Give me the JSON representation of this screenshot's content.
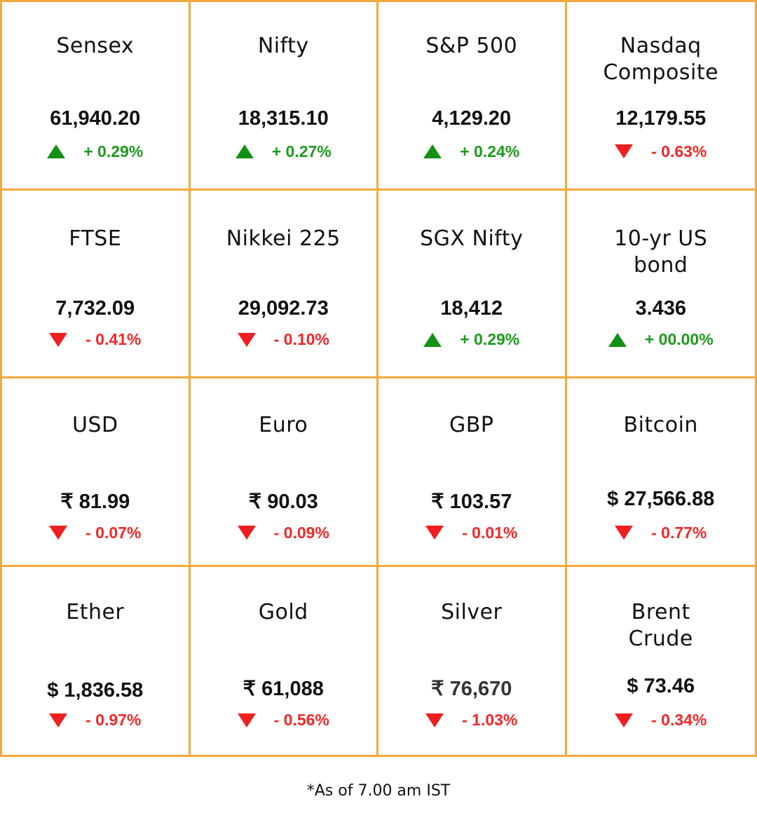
{
  "colors": {
    "border": "#f3a93b",
    "up": "#1e9a1e",
    "down": "#f02828"
  },
  "tiles": [
    {
      "name": "Sensex",
      "value": "61,940.20",
      "change": "+ 0.29%",
      "direction": "up",
      "direction_icon": "triangle-up-icon"
    },
    {
      "name": "Nifty",
      "value": "18,315.10",
      "change": "+ 0.27%",
      "direction": "up",
      "direction_icon": "triangle-up-icon"
    },
    {
      "name": "S&P 500",
      "value": "4,129.20",
      "change": "+ 0.24%",
      "direction": "up",
      "direction_icon": "triangle-up-icon"
    },
    {
      "name": "Nasdaq Composite",
      "value": "12,179.55",
      "change": "- 0.63%",
      "direction": "down",
      "direction_icon": "triangle-down-icon"
    },
    {
      "name": "FTSE",
      "value": "7,732.09",
      "change": "- 0.41%",
      "direction": "down",
      "direction_icon": "triangle-down-icon"
    },
    {
      "name": "Nikkei 225",
      "value": "29,092.73",
      "change": "- 0.10%",
      "direction": "down",
      "direction_icon": "triangle-down-icon"
    },
    {
      "name": "SGX Nifty",
      "value": "18,412",
      "change": "+ 0.29%",
      "direction": "up",
      "direction_icon": "triangle-up-icon"
    },
    {
      "name": "10-yr US bond",
      "value": "3.436",
      "change": "+ 00.00%",
      "direction": "up",
      "direction_icon": "triangle-up-icon"
    },
    {
      "name": "USD",
      "value": "₹ 81.99",
      "change": "- 0.07%",
      "direction": "down",
      "direction_icon": "triangle-down-icon"
    },
    {
      "name": "Euro",
      "value": "₹ 90.03",
      "change": "- 0.09%",
      "direction": "down",
      "direction_icon": "triangle-down-icon"
    },
    {
      "name": "GBP",
      "value": "₹ 103.57",
      "change": "- 0.01%",
      "direction": "down",
      "direction_icon": "triangle-down-icon"
    },
    {
      "name": "Bitcoin",
      "value": "$ 27,566.88",
      "change": "- 0.77%",
      "direction": "down",
      "direction_icon": "triangle-down-icon"
    },
    {
      "name": "Ether",
      "value": "$ 1,836.58",
      "change": "- 0.97%",
      "direction": "down",
      "direction_icon": "triangle-down-icon"
    },
    {
      "name": "Gold",
      "value": "₹ 61,088",
      "change": "- 0.56%",
      "direction": "down",
      "direction_icon": "triangle-down-icon"
    },
    {
      "name": "Silver",
      "value": "₹ 76,670",
      "change": "- 1.03%",
      "direction": "down",
      "direction_icon": "triangle-down-icon"
    },
    {
      "name": "Brent Crude",
      "value": "$ 73.46",
      "change": "- 0.34%",
      "direction": "down",
      "direction_icon": "triangle-down-icon"
    }
  ],
  "footer": {
    "note": "*As of 7.00 am IST"
  }
}
